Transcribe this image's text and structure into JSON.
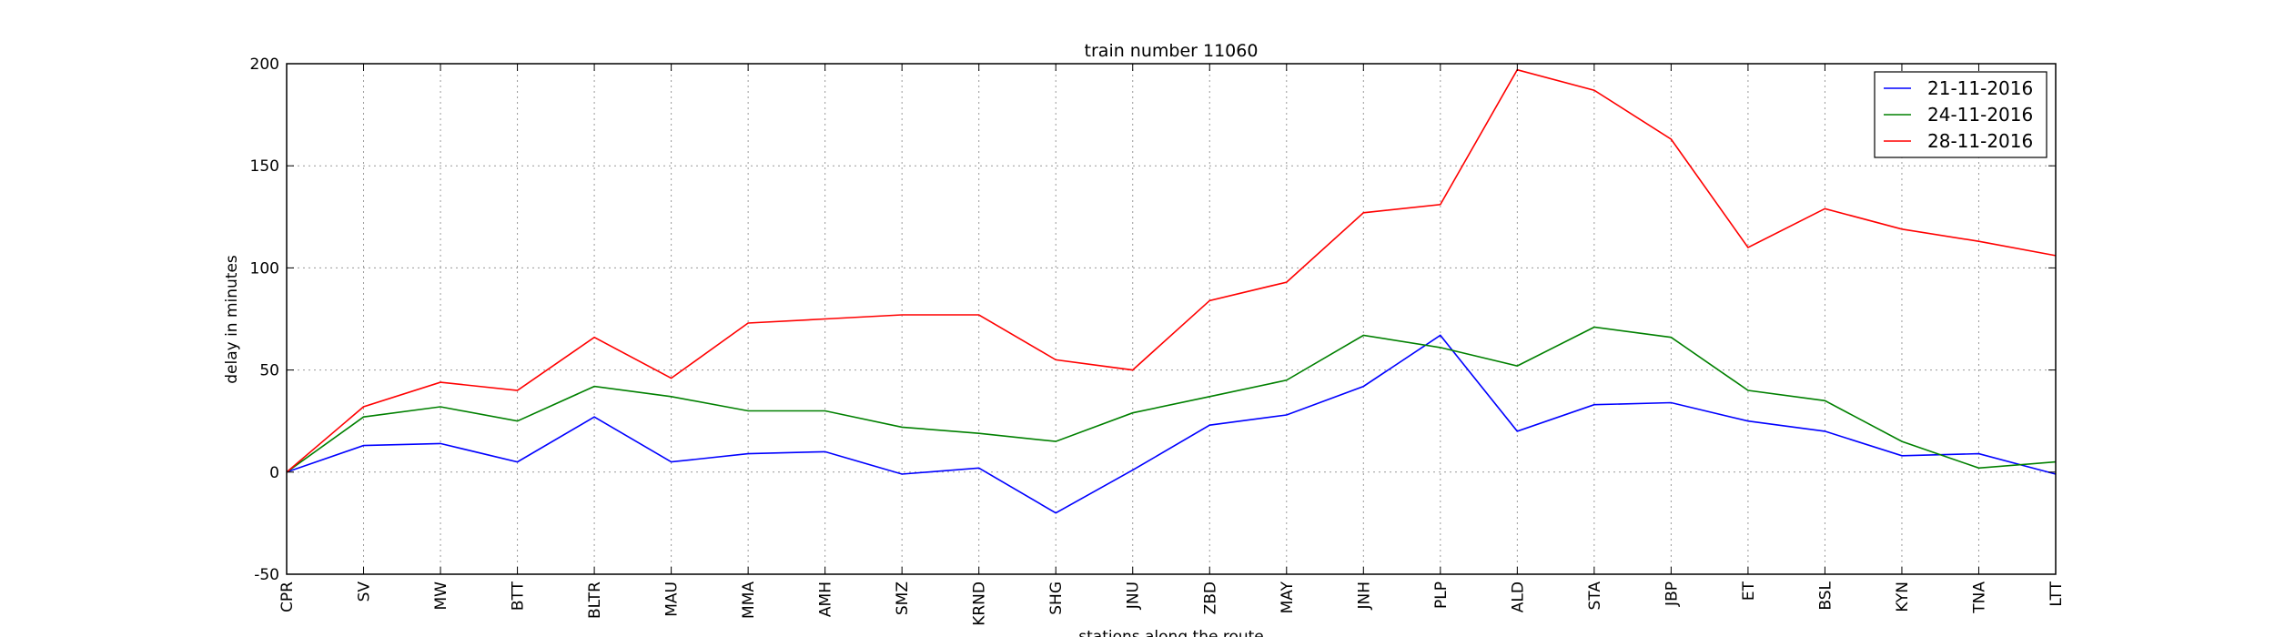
{
  "chart_data": {
    "type": "line",
    "title": "train number 11060",
    "xlabel": "stations along the route",
    "ylabel": "delay in minutes",
    "ylim": [
      -50,
      200
    ],
    "yticks": [
      -50,
      0,
      50,
      100,
      150,
      200
    ],
    "grid": true,
    "legend_position": "top-right",
    "categories": [
      "CPR",
      "SV",
      "MW",
      "BTT",
      "BLTR",
      "MAU",
      "MMA",
      "AMH",
      "SMZ",
      "KRND",
      "SHG",
      "JNU",
      "ZBD",
      "MAY",
      "JNH",
      "PLP",
      "ALD",
      "STA",
      "JBP",
      "ET",
      "BSL",
      "KYN",
      "TNA",
      "LTT"
    ],
    "series": [
      {
        "name": "21-11-2016",
        "color": "#0000ff",
        "values": [
          0,
          13,
          14,
          5,
          27,
          5,
          9,
          10,
          -1,
          2,
          -20,
          1,
          23,
          28,
          42,
          67,
          20,
          33,
          34,
          25,
          20,
          8,
          9,
          -1
        ]
      },
      {
        "name": "24-11-2016",
        "color": "#008000",
        "values": [
          0,
          27,
          32,
          25,
          42,
          37,
          30,
          30,
          22,
          19,
          15,
          29,
          37,
          45,
          67,
          61,
          52,
          71,
          66,
          40,
          35,
          15,
          2,
          5
        ]
      },
      {
        "name": "28-11-2016",
        "color": "#ff0000",
        "values": [
          0,
          32,
          44,
          40,
          66,
          46,
          73,
          75,
          77,
          77,
          55,
          50,
          84,
          93,
          127,
          131,
          197,
          187,
          163,
          110,
          129,
          119,
          113,
          106
        ]
      }
    ]
  }
}
